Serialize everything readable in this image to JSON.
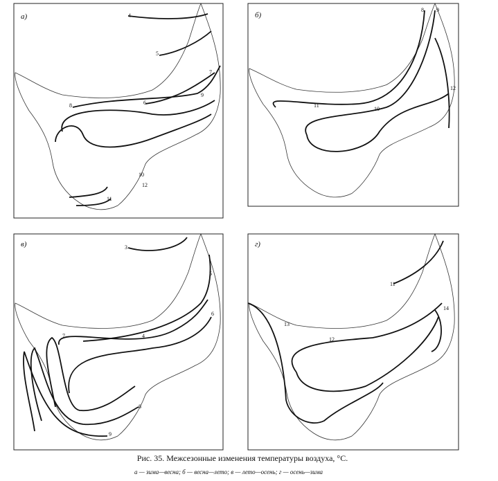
{
  "panels": [
    {
      "label": "а)",
      "isolines": [
        "4",
        "5",
        "6",
        "7",
        "8",
        "9",
        "10",
        "11",
        "12"
      ]
    },
    {
      "label": "б)",
      "isolines": [
        "8",
        "9",
        "10",
        "11",
        "12"
      ]
    },
    {
      "label": "в)",
      "isolines": [
        "3",
        "4",
        "5",
        "6",
        "7",
        "8",
        "9"
      ]
    },
    {
      "label": "г)",
      "isolines": [
        "11",
        "12",
        "13",
        "14"
      ]
    }
  ],
  "caption": {
    "title": "Рис. 35. Межсезонные изменения температуры воздуха, °С.",
    "legend": "а — зима—весна; б — весна—лето; в — лето—осень; г — осень—зима"
  }
}
